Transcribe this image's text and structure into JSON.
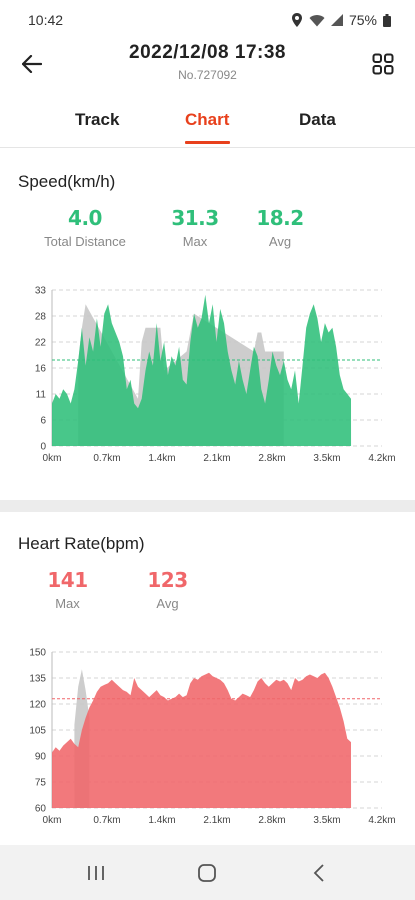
{
  "status_bar": {
    "time": "10:42",
    "battery": "75%"
  },
  "header": {
    "title": "2022/12/08 17:38",
    "subtitle": "No.727092"
  },
  "tabs": [
    {
      "label": "Track",
      "active": false
    },
    {
      "label": "Chart",
      "active": true
    },
    {
      "label": "Data",
      "active": false
    }
  ],
  "accent_color": "#e8401c",
  "speed": {
    "title": "Speed(km/h)",
    "stats": [
      {
        "value": "4.0",
        "label": "Total Distance"
      },
      {
        "value": "31.3",
        "label": "Max"
      },
      {
        "value": "18.2",
        "label": "Avg"
      }
    ],
    "color": "#2fbf7a"
  },
  "heart_rate": {
    "title": "Heart Rate(bpm)",
    "stats": [
      {
        "value": "141",
        "label": "Max"
      },
      {
        "value": "123",
        "label": "Avg"
      }
    ],
    "color": "#f0676a"
  },
  "chart_data": [
    {
      "type": "area",
      "title": "Speed(km/h)",
      "x_tick_labels": [
        "0km",
        "0.7km",
        "1.4km",
        "2.1km",
        "2.8km",
        "3.5km",
        "4.2km"
      ],
      "y_tick_labels": [
        "33",
        "28",
        "22",
        "16",
        "11",
        "6",
        "0"
      ],
      "ylim": [
        0,
        33
      ],
      "xlim": [
        0,
        4.2
      ],
      "avg_line": 18.2,
      "grid": true,
      "series": [
        {
          "role": "foreground",
          "color": "#2fbf7a",
          "x": [
            0,
            0.05,
            0.1,
            0.15,
            0.2,
            0.25,
            0.3,
            0.35,
            0.4,
            0.45,
            0.5,
            0.55,
            0.6,
            0.65,
            0.7,
            0.75,
            0.8,
            0.85,
            0.9,
            0.95,
            1.0,
            1.05,
            1.1,
            1.15,
            1.2,
            1.25,
            1.3,
            1.35,
            1.4,
            1.45,
            1.5,
            1.55,
            1.6,
            1.65,
            1.7,
            1.75,
            1.8,
            1.85,
            1.9,
            1.95,
            2.0,
            2.05,
            2.1,
            2.15,
            2.2,
            2.25,
            2.3,
            2.35,
            2.4,
            2.45,
            2.5,
            2.55,
            2.6,
            2.65,
            2.7,
            2.75,
            2.8,
            2.85,
            2.9,
            2.95,
            3.0,
            3.05,
            3.1,
            3.15,
            3.2,
            3.25,
            3.3,
            3.35,
            3.4,
            3.45,
            3.5,
            3.55,
            3.6,
            3.65,
            3.7,
            3.75,
            3.8,
            3.85,
            3.9,
            3.95,
            4.0
          ],
          "y": [
            9,
            11,
            10,
            12,
            11,
            9,
            12,
            18,
            25,
            17,
            23,
            20,
            27,
            21,
            28,
            30,
            26,
            24,
            22,
            19,
            12,
            14,
            9,
            8,
            10,
            16,
            20,
            17,
            26,
            18,
            22,
            15,
            19,
            17,
            21,
            14,
            13,
            22,
            28,
            25,
            27,
            32,
            26,
            30,
            22,
            29,
            26,
            20,
            16,
            13,
            18,
            14,
            11,
            16,
            21,
            19,
            12,
            9,
            14,
            20,
            17,
            15,
            18,
            14,
            12,
            16,
            9,
            17,
            25,
            28,
            30,
            27,
            22,
            26,
            24,
            25,
            21,
            15,
            12,
            11,
            10
          ]
        },
        {
          "role": "background",
          "color": "#c8c8c8",
          "x": [
            0.35,
            0.4,
            0.45,
            1.15,
            1.2,
            1.25,
            1.45,
            1.5,
            1.8,
            1.85,
            1.9,
            2.7,
            2.75,
            2.8,
            2.85,
            3.1
          ],
          "y": [
            18,
            25,
            30,
            10,
            22,
            25,
            25,
            16,
            20,
            24,
            28,
            20,
            24,
            24,
            20,
            20
          ]
        }
      ]
    },
    {
      "type": "area",
      "title": "Heart Rate(bpm)",
      "x_tick_labels": [
        "0km",
        "0.7km",
        "1.4km",
        "2.1km",
        "2.8km",
        "3.5km",
        "4.2km"
      ],
      "y_tick_labels": [
        "150",
        "135",
        "120",
        "105",
        "90",
        "75",
        "60"
      ],
      "ylim": [
        60,
        150
      ],
      "xlim": [
        0,
        4.2
      ],
      "avg_line": 123,
      "grid": true,
      "series": [
        {
          "role": "foreground",
          "color": "#f0676a",
          "x": [
            0,
            0.05,
            0.1,
            0.15,
            0.2,
            0.25,
            0.3,
            0.35,
            0.4,
            0.45,
            0.5,
            0.55,
            0.6,
            0.65,
            0.7,
            0.75,
            0.8,
            0.85,
            0.9,
            0.95,
            1.0,
            1.05,
            1.1,
            1.15,
            1.2,
            1.25,
            1.3,
            1.35,
            1.4,
            1.45,
            1.5,
            1.55,
            1.6,
            1.65,
            1.7,
            1.75,
            1.8,
            1.85,
            1.9,
            1.95,
            2.0,
            2.05,
            2.1,
            2.15,
            2.2,
            2.25,
            2.3,
            2.35,
            2.4,
            2.45,
            2.5,
            2.55,
            2.6,
            2.65,
            2.7,
            2.75,
            2.8,
            2.85,
            2.9,
            2.95,
            3.0,
            3.05,
            3.1,
            3.15,
            3.2,
            3.25,
            3.3,
            3.35,
            3.4,
            3.45,
            3.5,
            3.55,
            3.6,
            3.65,
            3.7,
            3.75,
            3.8,
            3.85,
            3.9,
            3.95,
            4.0
          ],
          "y": [
            92,
            95,
            93,
            96,
            98,
            100,
            97,
            95,
            105,
            112,
            118,
            122,
            127,
            130,
            131,
            132,
            134,
            132,
            130,
            128,
            127,
            125,
            135,
            130,
            128,
            126,
            124,
            126,
            128,
            125,
            124,
            122,
            123,
            124,
            126,
            124,
            125,
            132,
            135,
            134,
            136,
            137,
            138,
            136,
            135,
            134,
            132,
            128,
            123,
            122,
            124,
            126,
            125,
            124,
            128,
            133,
            135,
            132,
            130,
            132,
            134,
            133,
            134,
            132,
            128,
            135,
            133,
            134,
            136,
            137,
            136,
            135,
            137,
            138,
            135,
            130,
            124,
            118,
            110,
            100,
            98
          ]
        },
        {
          "role": "background",
          "color": "#c8c8c8",
          "x": [
            0.3,
            0.35,
            0.4,
            0.45,
            0.5
          ],
          "y": [
            108,
            130,
            140,
            128,
            112
          ]
        }
      ]
    }
  ]
}
